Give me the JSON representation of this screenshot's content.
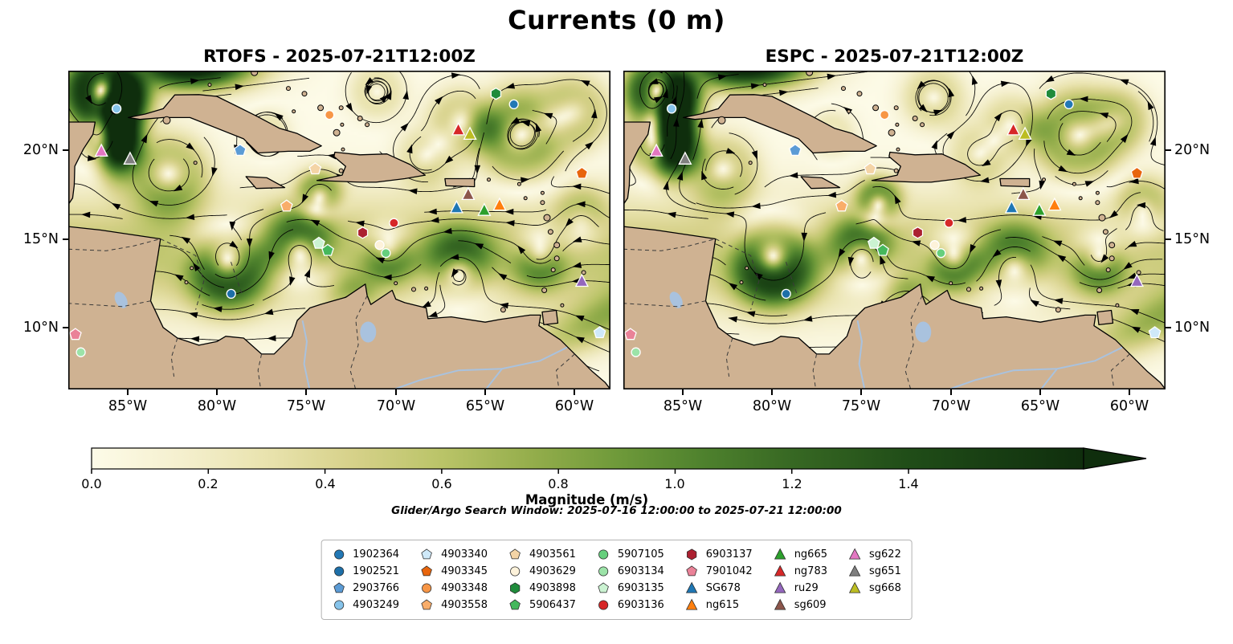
{
  "title": "Currents (0 m)",
  "search_window_note": "Glider/Argo Search Window: 2025-07-16 12:00:00 to 2025-07-21 12:00:00",
  "chart_data": {
    "type": "map-streamplot",
    "title": "Currents (0 m)",
    "panels": [
      {
        "model": "RTOFS",
        "timestamp": "2025-07-21T12:00Z",
        "title": "RTOFS - 2025-07-21T12:00Z"
      },
      {
        "model": "ESPC",
        "timestamp": "2025-07-21T12:00Z",
        "title": "ESPC - 2025-07-21T12:00Z"
      }
    ],
    "extent": {
      "lon_min": -88.3,
      "lon_max": -58.0,
      "lat_min": 6.5,
      "lat_max": 24.5
    },
    "lon_ticks": [
      {
        "deg": -85,
        "label": "85°W"
      },
      {
        "deg": -80,
        "label": "80°W"
      },
      {
        "deg": -75,
        "label": "75°W"
      },
      {
        "deg": -70,
        "label": "70°W"
      },
      {
        "deg": -65,
        "label": "65°W"
      },
      {
        "deg": -60,
        "label": "60°W"
      }
    ],
    "lat_ticks": [
      {
        "deg": 20,
        "label": "20°N"
      },
      {
        "deg": 15,
        "label": "15°N"
      },
      {
        "deg": 10,
        "label": "10°N"
      }
    ],
    "colorbar": {
      "label": "Magnitude (m/s)",
      "tick_labels": [
        "0.0",
        "0.2",
        "0.4",
        "0.6",
        "0.8",
        "1.0",
        "1.2",
        "1.4"
      ],
      "tick_values": [
        0,
        0.2,
        0.4,
        0.6,
        0.8,
        1.0,
        1.2,
        1.4
      ],
      "vmax": 1.7,
      "extend": "max",
      "colormap_stops": [
        {
          "v": 0.0,
          "c": "#fdfbe8"
        },
        {
          "v": 0.15,
          "c": "#f5f0cf"
        },
        {
          "v": 0.3,
          "c": "#e9e3ae"
        },
        {
          "v": 0.45,
          "c": "#d6d189"
        },
        {
          "v": 0.6,
          "c": "#bac468"
        },
        {
          "v": 0.75,
          "c": "#95ae4c"
        },
        {
          "v": 0.9,
          "c": "#6f9a3a"
        },
        {
          "v": 1.05,
          "c": "#4e812d"
        },
        {
          "v": 1.2,
          "c": "#376823"
        },
        {
          "v": 1.4,
          "c": "#204d18"
        },
        {
          "v": 1.7,
          "c": "#0f2e0d"
        }
      ]
    },
    "platforms": [
      {
        "id": "1902364",
        "marker": "circle",
        "color": "#2278b5",
        "lon": -63.4,
        "lat": 22.6
      },
      {
        "id": "1902521",
        "marker": "circle",
        "color": "#1d6fa8",
        "lon": -79.2,
        "lat": 11.9
      },
      {
        "id": "2903766",
        "marker": "pentagon",
        "color": "#5b9bd5",
        "lon": -78.7,
        "lat": 20.0
      },
      {
        "id": "4903249",
        "marker": "circle",
        "color": "#86c3ea",
        "lon": -85.6,
        "lat": 22.35
      },
      {
        "id": "4903340",
        "marker": "pentagon",
        "color": "#cfe9f9",
        "lon": -58.6,
        "lat": 9.7
      },
      {
        "id": "4903345",
        "marker": "pentagon",
        "color": "#e8650d",
        "lon": -59.6,
        "lat": 18.7
      },
      {
        "id": "4903348",
        "marker": "circle",
        "color": "#f79646",
        "lon": -73.7,
        "lat": 22.0
      },
      {
        "id": "4903558",
        "marker": "pentagon",
        "color": "#f9ad6a",
        "lon": -76.1,
        "lat": 16.85
      },
      {
        "id": "4903561",
        "marker": "pentagon",
        "color": "#f4d4a6",
        "lon": -74.5,
        "lat": 18.95
      },
      {
        "id": "4903629",
        "marker": "circle",
        "color": "#fdf2da",
        "lon": -70.9,
        "lat": 14.65
      },
      {
        "id": "4903898",
        "marker": "hexagon",
        "color": "#1f8b3b",
        "lon": -64.4,
        "lat": 23.2
      },
      {
        "id": "5906437",
        "marker": "pentagon",
        "color": "#45b85c",
        "lon": -73.8,
        "lat": 14.35
      },
      {
        "id": "5907105",
        "marker": "circle",
        "color": "#66cf7d",
        "lon": -70.55,
        "lat": 14.2
      },
      {
        "id": "6903134",
        "marker": "circle",
        "color": "#9ce3a8",
        "lon": -87.6,
        "lat": 8.6
      },
      {
        "id": "6903135",
        "marker": "pentagon",
        "color": "#cbf3d2",
        "lon": -74.3,
        "lat": 14.75
      },
      {
        "id": "6903136",
        "marker": "circle",
        "color": "#d62728",
        "lon": -70.1,
        "lat": 15.9
      },
      {
        "id": "6903137",
        "marker": "hexagon",
        "color": "#ab2030",
        "lon": -71.85,
        "lat": 15.35
      },
      {
        "id": "7901042",
        "marker": "pentagon",
        "color": "#ea8298",
        "lon": -87.9,
        "lat": 9.6
      },
      {
        "id": "SG678",
        "marker": "triangle",
        "color": "#1f77b4",
        "lon": -66.6,
        "lat": 16.75
      },
      {
        "id": "ng615",
        "marker": "triangle",
        "color": "#ff7f0e",
        "lon": -64.2,
        "lat": 16.9
      },
      {
        "id": "ng665",
        "marker": "triangle",
        "color": "#2ca02c",
        "lon": -65.05,
        "lat": 16.6
      },
      {
        "id": "ng783",
        "marker": "triangle",
        "color": "#d62728",
        "lon": -66.5,
        "lat": 21.15
      },
      {
        "id": "ru29",
        "marker": "triangle",
        "color": "#9467bd",
        "lon": -59.6,
        "lat": 12.6
      },
      {
        "id": "sg609",
        "marker": "triangle",
        "color": "#8c564b",
        "lon": -65.95,
        "lat": 17.5
      },
      {
        "id": "sg622",
        "marker": "triangle",
        "color": "#e377c2",
        "lon": -86.45,
        "lat": 19.95
      },
      {
        "id": "sg651",
        "marker": "triangle",
        "color": "#7f7f7f",
        "lon": -84.85,
        "lat": 19.5
      },
      {
        "id": "sg668",
        "marker": "triangle",
        "color": "#bcbd22",
        "lon": -65.85,
        "lat": 20.9
      }
    ],
    "land_color": "#cfb292",
    "water_feature_color": "#a9c2de"
  }
}
